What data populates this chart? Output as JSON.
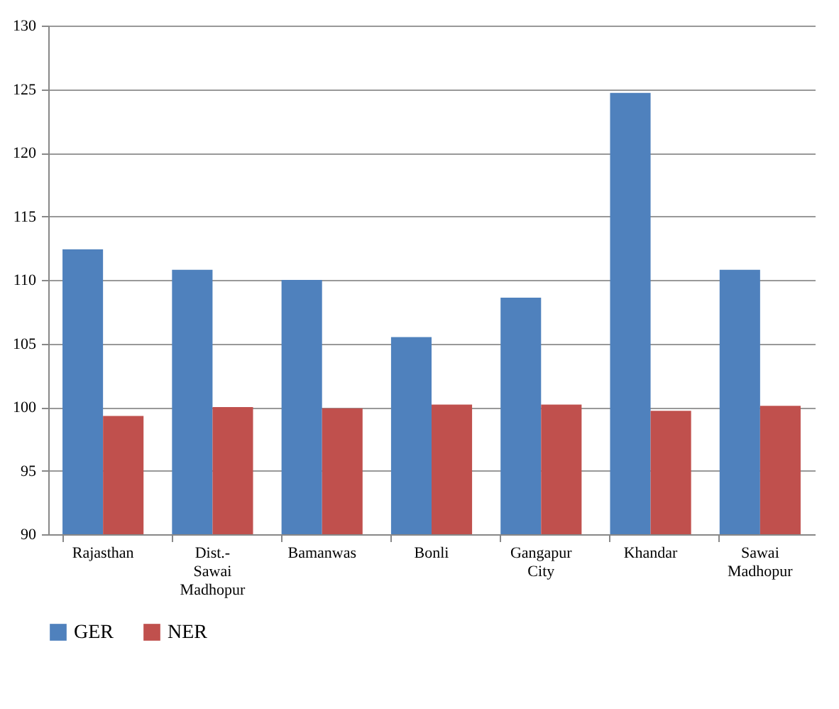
{
  "chart_data": {
    "type": "bar",
    "categories": [
      "Rajasthan",
      "Dist.- Sawai Madhopur",
      "Bamanwas",
      "Bonli",
      "Gangapur City",
      "Khandar",
      "Sawai Madhopur"
    ],
    "series": [
      {
        "name": "GER",
        "color": "#4f81bd",
        "values": [
          112.4,
          110.8,
          110.0,
          105.5,
          108.6,
          124.7,
          110.8
        ]
      },
      {
        "name": "NER",
        "color": "#c0504d",
        "values": [
          99.3,
          100.0,
          99.9,
          100.2,
          100.2,
          99.7,
          100.1
        ]
      }
    ],
    "ylim": [
      90,
      130
    ],
    "yticks": [
      90,
      95,
      100,
      105,
      110,
      115,
      120,
      125,
      130
    ],
    "grid": "y",
    "legend": "bottom"
  }
}
